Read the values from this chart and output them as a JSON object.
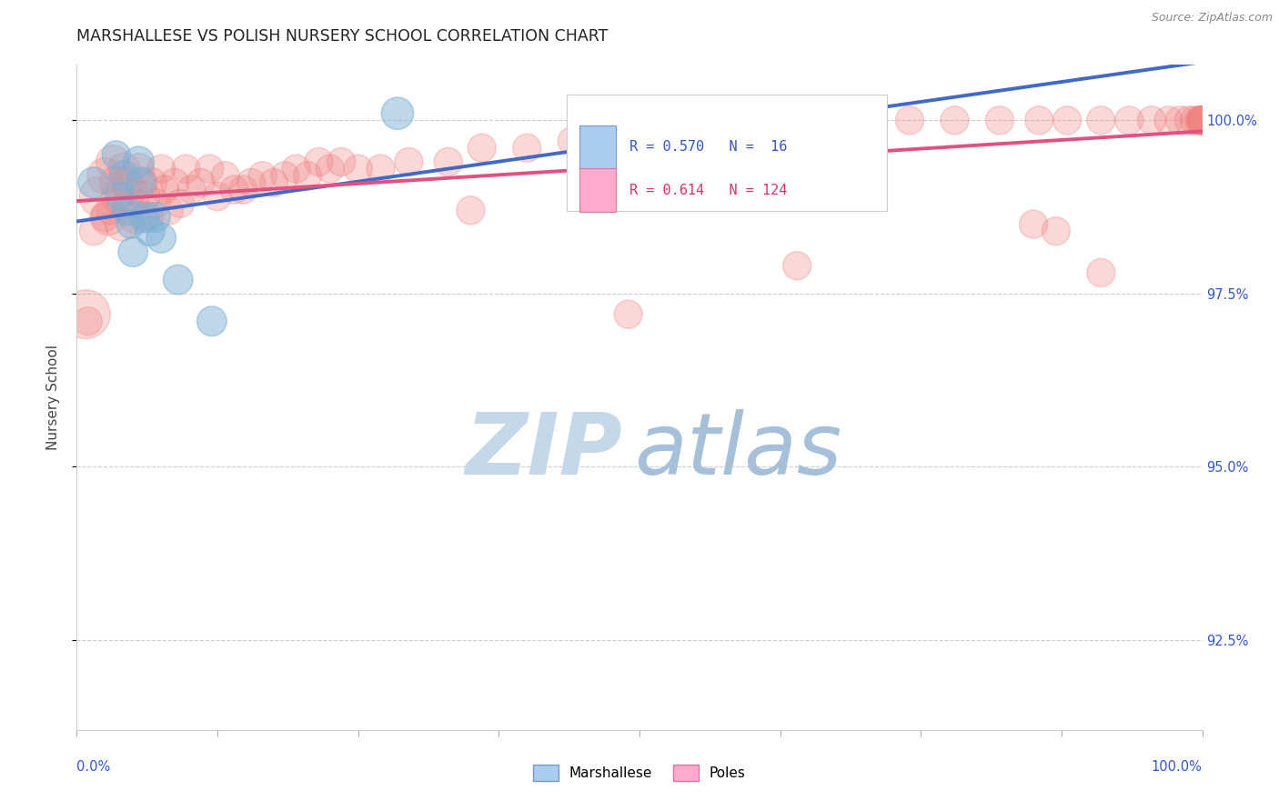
{
  "title": "MARSHALLESE VS POLISH NURSERY SCHOOL CORRELATION CHART",
  "source": "Source: ZipAtlas.com",
  "ylabel": "Nursery School",
  "ytick_labels": [
    "100.0%",
    "97.5%",
    "95.0%",
    "92.5%"
  ],
  "ytick_values": [
    1.0,
    0.975,
    0.95,
    0.925
  ],
  "xlim": [
    0.0,
    1.0
  ],
  "ylim": [
    0.912,
    1.008
  ],
  "legend_label1": "Marshallese",
  "legend_label2": "Poles",
  "r1": 0.57,
  "n1": 16,
  "r2": 0.614,
  "n2": 124,
  "color_blue": "#7EB0D5",
  "color_pink": "#F08080",
  "color_blue_line": "#4169C8",
  "color_pink_line": "#E05080",
  "bg_color": "#FFFFFF",
  "blue_points_x": [
    0.015,
    0.035,
    0.038,
    0.042,
    0.045,
    0.048,
    0.05,
    0.055,
    0.057,
    0.06,
    0.065,
    0.07,
    0.075,
    0.09,
    0.12,
    0.285
  ],
  "blue_points_y": [
    0.991,
    0.995,
    0.989,
    0.992,
    0.987,
    0.985,
    0.981,
    0.994,
    0.991,
    0.986,
    0.984,
    0.986,
    0.983,
    0.977,
    0.971,
    1.001
  ],
  "blue_sizes": [
    120,
    100,
    100,
    110,
    110,
    100,
    110,
    120,
    110,
    110,
    110,
    110,
    110,
    110,
    110,
    130
  ],
  "pink_points_x": [
    0.008,
    0.02,
    0.025,
    0.028,
    0.032,
    0.035,
    0.037,
    0.04,
    0.042,
    0.045,
    0.048,
    0.05,
    0.052,
    0.055,
    0.058,
    0.06,
    0.063,
    0.067,
    0.07,
    0.075,
    0.078,
    0.082,
    0.087,
    0.092,
    0.097,
    0.102,
    0.11,
    0.118,
    0.125,
    0.132,
    0.14,
    0.148,
    0.155,
    0.165,
    0.175,
    0.185,
    0.195,
    0.205,
    0.215,
    0.225,
    0.235,
    0.25,
    0.27,
    0.295,
    0.33,
    0.36,
    0.4,
    0.44,
    0.49,
    0.54,
    0.595,
    0.65,
    0.7,
    0.74,
    0.78,
    0.82,
    0.855,
    0.88,
    0.91,
    0.935,
    0.955,
    0.97,
    0.98,
    0.988,
    0.993,
    0.997,
    0.999,
    0.999,
    0.999,
    1.0,
    1.0,
    0.015,
    0.025,
    0.03,
    0.01,
    0.35,
    0.49,
    0.64,
    0.85,
    0.91,
    0.87
  ],
  "pink_points_y": [
    0.972,
    0.989,
    0.992,
    0.986,
    0.994,
    0.991,
    0.989,
    0.985,
    0.993,
    0.991,
    0.99,
    0.988,
    0.986,
    0.993,
    0.991,
    0.989,
    0.986,
    0.991,
    0.988,
    0.993,
    0.99,
    0.987,
    0.991,
    0.988,
    0.993,
    0.99,
    0.991,
    0.993,
    0.989,
    0.992,
    0.99,
    0.99,
    0.991,
    0.992,
    0.991,
    0.992,
    0.993,
    0.992,
    0.994,
    0.993,
    0.994,
    0.993,
    0.993,
    0.994,
    0.994,
    0.996,
    0.996,
    0.997,
    0.997,
    0.998,
    0.999,
    0.999,
    0.999,
    1.0,
    1.0,
    1.0,
    1.0,
    1.0,
    1.0,
    1.0,
    1.0,
    1.0,
    1.0,
    1.0,
    1.0,
    1.0,
    1.0,
    1.0,
    1.0,
    1.0,
    1.0,
    0.984,
    0.986,
    0.987,
    0.971,
    0.987,
    0.972,
    0.979,
    0.985,
    0.978,
    0.984
  ],
  "pink_sizes": [
    300,
    200,
    160,
    160,
    140,
    140,
    140,
    140,
    130,
    130,
    130,
    130,
    130,
    120,
    120,
    120,
    120,
    110,
    110,
    100,
    100,
    100,
    100,
    100,
    100,
    100,
    100,
    100,
    100,
    100,
    100,
    100,
    100,
    100,
    100,
    100,
    100,
    100,
    100,
    100,
    100,
    100,
    100,
    100,
    100,
    100,
    100,
    100,
    100,
    100,
    100,
    100,
    100,
    100,
    100,
    100,
    100,
    100,
    100,
    100,
    100,
    100,
    100,
    100,
    100,
    100,
    100,
    100,
    100,
    100,
    100,
    100,
    100,
    100,
    100,
    100,
    100,
    100,
    100,
    100,
    100
  ]
}
